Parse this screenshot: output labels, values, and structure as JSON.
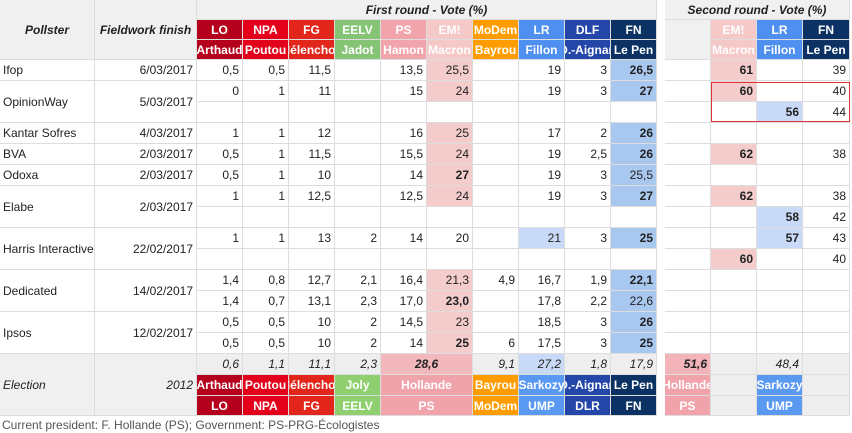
{
  "header": {
    "pollster": "Pollster",
    "fieldwork": "Fieldwork finish",
    "first_round": "First round - Vote (%)",
    "second_round": "Second round - Vote (%)"
  },
  "first_round_parties": [
    {
      "party": "LO",
      "candidate": "Arthaud",
      "color": "#b5001d",
      "text_color": "#ffffff",
      "shade": "#e6b8bf"
    },
    {
      "party": "NPA",
      "candidate": "Poutou",
      "color": "#e2001a",
      "text_color": "#ffffff",
      "shade": "#f4b8bf"
    },
    {
      "party": "FG",
      "candidate": "Mélenchon",
      "color": "#e3261c",
      "text_color": "#ffffff",
      "shade": "#f4bcb8"
    },
    {
      "party": "EELV",
      "candidate": "Jadot",
      "color": "#84c474",
      "text_color": "#ffffff",
      "shade": "#d4ecce"
    },
    {
      "party": "PS",
      "candidate": "Hamon",
      "color": "#f2a4ac",
      "text_color": "#ffffff",
      "shade": "#f4b9be"
    },
    {
      "party": "EM!",
      "candidate": "Macron",
      "color": "#f6c9c9",
      "text_color": "#ffffff",
      "shade": "#f4cccc"
    },
    {
      "party": "MoDem",
      "candidate": "Bayrou",
      "color": "#ff9d00",
      "text_color": "#ffffff",
      "shade": "#ffe0a8"
    },
    {
      "party": "LR",
      "candidate": "Fillon",
      "color": "#4f8ff0",
      "text_color": "#ffffff",
      "shade": "#c9daf8"
    },
    {
      "party": "DLF",
      "candidate": "D.-Aignan",
      "color": "#2446a8",
      "text_color": "#ffffff",
      "shade": "#bcc8e8"
    },
    {
      "party": "FN",
      "candidate": "Le Pen",
      "color": "#0b3263",
      "text_color": "#ffffff",
      "shade": "#a9c8ef"
    }
  ],
  "second_round_parties": [
    {
      "party": "EM!",
      "candidate": "Macron",
      "color": "#f6c9c9",
      "text_color": "#ffffff",
      "shade": "#f4cccc"
    },
    {
      "party": "LR",
      "candidate": "Fillon",
      "color": "#4f8ff0",
      "text_color": "#ffffff",
      "shade": "#c9daf8"
    },
    {
      "party": "FN",
      "candidate": "Le Pen",
      "color": "#0b3263",
      "text_color": "#ffffff",
      "shade": "#a9c8ef"
    }
  ],
  "rows": [
    {
      "pollster": "Ifop",
      "date": "6/03/2017",
      "subrows": [
        {
          "first": [
            "0,5",
            "0,5",
            "11,5",
            null,
            "13,5",
            "25,5",
            null,
            "19",
            "3",
            "26,5"
          ],
          "second": [
            "61",
            null,
            "39"
          ]
        }
      ]
    },
    {
      "pollster": "OpinionWay",
      "date": "5/03/2017",
      "subrows": [
        {
          "first": [
            "0",
            "1",
            "11",
            null,
            "15",
            "24",
            null,
            "19",
            "3",
            "27"
          ],
          "second": [
            "60",
            null,
            "40"
          ]
        },
        {
          "first": [
            null,
            null,
            null,
            null,
            null,
            null,
            null,
            null,
            null,
            null
          ],
          "second": [
            null,
            "56",
            "44"
          ]
        }
      ]
    },
    {
      "pollster": "Kantar Sofres",
      "date": "4/03/2017",
      "subrows": [
        {
          "first": [
            "1",
            "1",
            "12",
            null,
            "16",
            "25",
            null,
            "17",
            "2",
            "26"
          ],
          "second": [
            null,
            null,
            null
          ]
        }
      ]
    },
    {
      "pollster": "BVA",
      "date": "2/03/2017",
      "subrows": [
        {
          "first": [
            "0,5",
            "1",
            "11,5",
            null,
            "15,5",
            "24",
            null,
            "19",
            "2,5",
            "26"
          ],
          "second": [
            "62",
            null,
            "38"
          ]
        }
      ]
    },
    {
      "pollster": "Odoxa",
      "date": "2/03/2017",
      "subrows": [
        {
          "first": [
            "0,5",
            "1",
            "10",
            null,
            "14",
            "27",
            null,
            "19",
            "3",
            "25,5"
          ],
          "second": [
            null,
            null,
            null
          ]
        }
      ]
    },
    {
      "pollster": "Elabe",
      "date": "2/03/2017",
      "subrows": [
        {
          "first": [
            "1",
            "1",
            "12,5",
            null,
            "12,5",
            "24",
            null,
            "19",
            "3",
            "27"
          ],
          "second": [
            "62",
            null,
            "38"
          ]
        },
        {
          "first": [
            null,
            null,
            null,
            null,
            null,
            null,
            null,
            null,
            null,
            null
          ],
          "second": [
            null,
            "58",
            "42"
          ]
        }
      ]
    },
    {
      "pollster": "Harris Interactive",
      "date": "22/02/2017",
      "subrows": [
        {
          "first": [
            "1",
            "1",
            "13",
            "2",
            "14",
            "20",
            null,
            "21",
            "3",
            "25"
          ],
          "second": [
            null,
            "57",
            "43"
          ]
        },
        {
          "first": [
            null,
            null,
            null,
            null,
            null,
            null,
            null,
            null,
            null,
            null
          ],
          "second": [
            "60",
            null,
            "40"
          ]
        }
      ]
    },
    {
      "pollster": "Dedicated",
      "date": "14/02/2017",
      "subrows": [
        {
          "first": [
            "1,4",
            "0,8",
            "12,7",
            "2,1",
            "16,4",
            "21,3",
            "4,9",
            "16,7",
            "1,9",
            "22,1"
          ],
          "second": [
            null,
            null,
            null
          ]
        },
        {
          "first": [
            "1,4",
            "0,7",
            "13,1",
            "2,3",
            "17,0",
            "23,0",
            null,
            "17,8",
            "2,2",
            "22,6"
          ],
          "second": [
            null,
            null,
            null
          ]
        }
      ]
    },
    {
      "pollster": "Ipsos",
      "date": "12/02/2017",
      "subrows": [
        {
          "first": [
            "0,5",
            "0,5",
            "10",
            "2",
            "14,5",
            "23",
            null,
            "18,5",
            "3",
            "26"
          ],
          "second": [
            null,
            null,
            null
          ]
        },
        {
          "first": [
            "0,5",
            "0,5",
            "10",
            "2",
            "14",
            "25",
            "6",
            "17,5",
            "3",
            "25"
          ],
          "second": [
            null,
            null,
            null
          ]
        }
      ]
    }
  ],
  "election": {
    "label": "Election",
    "year": "2012",
    "first": [
      {
        "value": "0,6",
        "candidate": "Arthaud",
        "party": "LO",
        "color": "#b5001d",
        "shade": "#e6b8bf"
      },
      {
        "value": "1,1",
        "candidate": "Poutou",
        "party": "NPA",
        "color": "#e2001a",
        "shade": "#f4b8bf"
      },
      {
        "value": "11,1",
        "candidate": "Mélenchon",
        "party": "FG",
        "color": "#e3261c",
        "shade": "#f4bcb8"
      },
      {
        "value": "2,3",
        "candidate": "Joly",
        "party": "EELV",
        "color": "#8fcf6f",
        "shade": "#d4ecce"
      },
      {
        "value": "28,6",
        "candidate": "Hollande",
        "party": "PS",
        "color": "#f0a3ab",
        "shade": "#f2b8bc"
      },
      {
        "value": "9,1",
        "candidate": "Bayrou",
        "party": "MoDem",
        "color": "#ff9d00",
        "shade": "#ffe0a8"
      },
      {
        "value": "27,2",
        "candidate": "Sarkozy",
        "party": "UMP",
        "color": "#5a99f2",
        "shade": "#c9daf8"
      },
      {
        "value": "1,8",
        "candidate": "D.-Aignan",
        "party": "DLR",
        "color": "#2446a8",
        "shade": "#bcc8e8"
      },
      {
        "value": "17,9",
        "candidate": "Le Pen",
        "party": "FN",
        "color": "#0b3263",
        "shade": "#a9c8ef"
      }
    ],
    "second": [
      {
        "value": "51,6",
        "candidate": "Hollande",
        "party": "PS",
        "color": "#f0a3ab",
        "shade": "#f2b4b8"
      },
      {
        "value": "48,4",
        "candidate": "Sarkozy",
        "party": "UMP",
        "color": "#5a99f2",
        "shade": "#c9daf8"
      }
    ]
  },
  "footer": "Current president: F. Hollande (PS); Government: PS-PRG-Écologistes"
}
